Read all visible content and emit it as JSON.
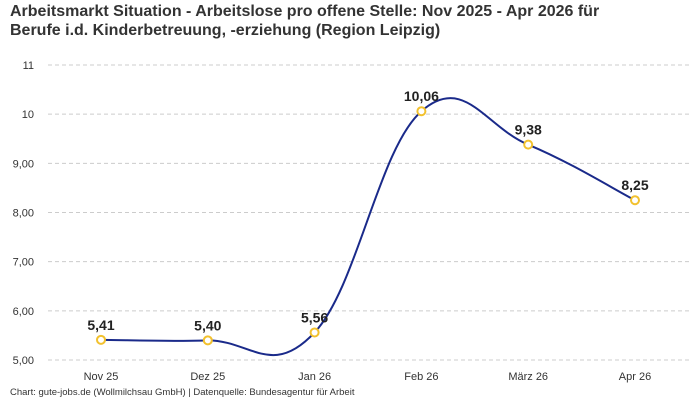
{
  "title_line1": "Arbeitsmarkt Situation - Arbeitslose pro offene Stelle: Nov 2025 - Apr 2026 für",
  "title_line2": "Berufe i.d. Kinderbetreuung, -erziehung (Region Leipzig)",
  "footer": "Chart: gute-jobs.de (Wollmilchsau GmbH) | Datenquelle: Bundesagentur für Arbeit",
  "chart_data": {
    "type": "line",
    "title": "Arbeitsmarkt Situation - Arbeitslose pro offene Stelle: Nov 2025 - Apr 2026 für Berufe i.d. Kinderbetreuung, -erziehung (Region Leipzig)",
    "categories": [
      "Nov 25",
      "Dez 25",
      "Jan 26",
      "Feb 26",
      "März 26",
      "Apr 26"
    ],
    "values": [
      5.41,
      5.4,
      5.56,
      10.06,
      9.38,
      8.25
    ],
    "data_labels": [
      "5,41",
      "5,40",
      "5,56",
      "10,06",
      "9,38",
      "8,25"
    ],
    "y_ticks": [
      5,
      6,
      7,
      8,
      9,
      10,
      11
    ],
    "y_tick_labels": [
      "5,00",
      "6,00",
      "7,00",
      "8,00",
      "9,00",
      "10",
      "11"
    ],
    "ylim": [
      5,
      11
    ],
    "xlabel": "",
    "ylabel": "",
    "grid": true,
    "line_color": "#1a2a8a",
    "marker_color": "#f2c12e",
    "grid_color": "#cccccc"
  }
}
